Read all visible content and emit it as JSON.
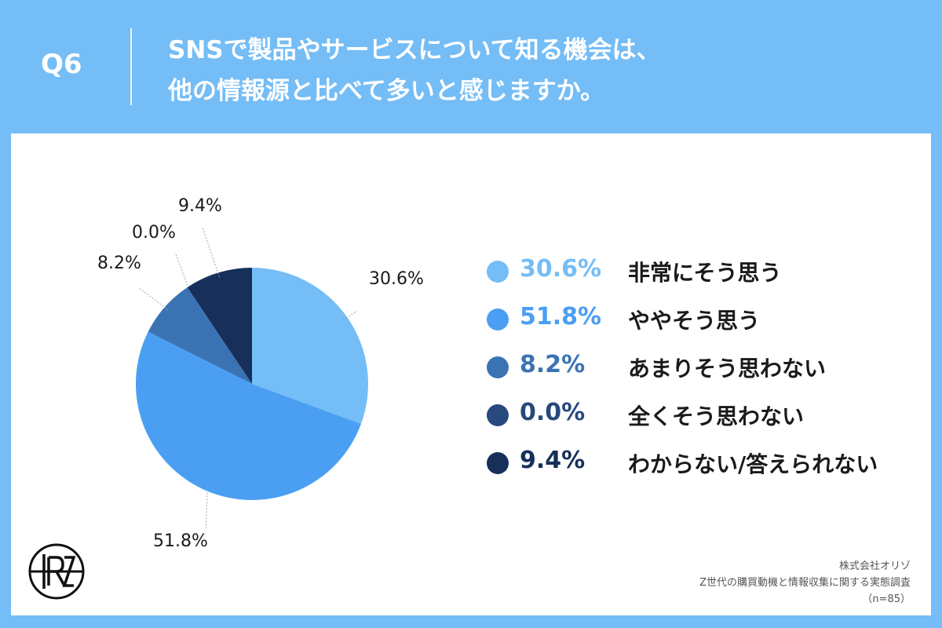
{
  "header": {
    "q_number": "Q6",
    "title_line1": "SNSで製品やサービスについて知る機会は、",
    "title_line2": "他の情報源と比べて多いと感じますか。"
  },
  "chart_data": {
    "type": "pie",
    "categories": [
      "非常にそう思う",
      "ややそう思う",
      "あまりそう思わない",
      "全くそう思わない",
      "わからない/答えられない"
    ],
    "values": [
      30.6,
      51.8,
      8.2,
      0.0,
      9.4
    ],
    "data_labels": [
      "30.6%",
      "51.8%",
      "8.2%",
      "0.0%",
      "9.4%"
    ],
    "colors": [
      "#74bdf6",
      "#4a9ff2",
      "#3a73b4",
      "#27497d",
      "#16305a"
    ],
    "legend_placement": "right"
  },
  "legend": {
    "items": [
      {
        "value": "30.6%",
        "label": "非常にそう思う"
      },
      {
        "value": "51.8%",
        "label": "ややそう思う"
      },
      {
        "value": "8.2%",
        "label": "あまりそう思わない"
      },
      {
        "value": "0.0%",
        "label": "全くそう思わない"
      },
      {
        "value": "9.4%",
        "label": "わからない/答えられない"
      }
    ]
  },
  "logo": {
    "text": "RZ",
    "icon": "orizo-logo-icon"
  },
  "source": {
    "company": "株式会社オリゾ",
    "survey": "Z世代の購買動機と情報収集に関する実態調査",
    "sample": "（n=85）"
  }
}
